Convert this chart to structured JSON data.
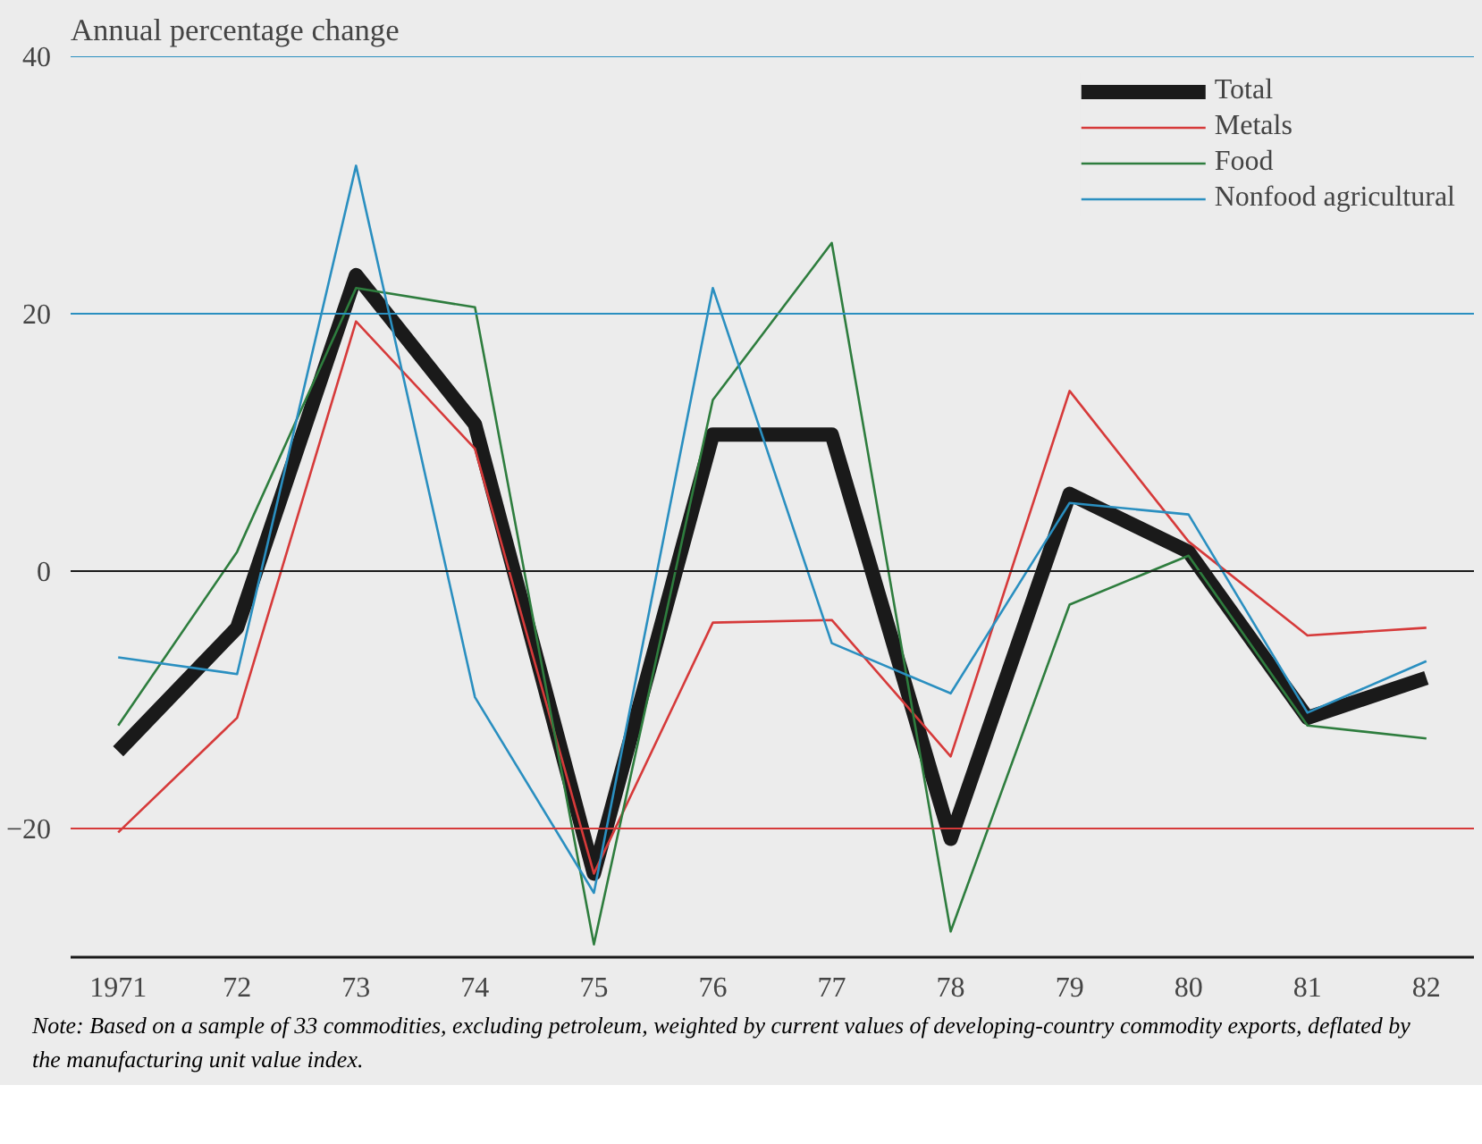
{
  "chart_data": {
    "type": "line",
    "ylabel": "Annual percentage change",
    "categories": [
      "1971",
      "72",
      "73",
      "74",
      "75",
      "76",
      "77",
      "78",
      "79",
      "80",
      "81",
      "82"
    ],
    "series": [
      {
        "name": "Total",
        "color": "#1a1a1a",
        "values": [
          -14,
          -4.4,
          23,
          11.4,
          -23.5,
          10.6,
          10.6,
          -20.8,
          6,
          1.5,
          -11.4,
          -8.3
        ]
      },
      {
        "name": "Metals",
        "color": "#d63a3a",
        "values": [
          -20.3,
          -11.4,
          19.4,
          9.5,
          -23.5,
          -4,
          -3.8,
          -14.4,
          14,
          2.3,
          -5,
          -4.4
        ]
      },
      {
        "name": "Food",
        "color": "#2e7d3e",
        "values": [
          -12,
          1.5,
          22,
          20.5,
          -29,
          13.3,
          25.5,
          -28,
          -2.6,
          1.2,
          -12,
          -13
        ]
      },
      {
        "name": "Nonfood agricultural",
        "color": "#2a8fc0",
        "values": [
          -6.7,
          -8,
          31.5,
          -9.8,
          -25,
          22,
          -5.6,
          -9.5,
          5.3,
          4.4,
          -11,
          -7
        ]
      }
    ],
    "ylim": [
      -30,
      40
    ],
    "yticks": [
      -20,
      0,
      20,
      40
    ],
    "ref_lines": [
      {
        "axis": "y",
        "value": 40,
        "color": "#2a8fc0"
      },
      {
        "axis": "y",
        "value": 20,
        "color": "#2a8fc0"
      },
      {
        "axis": "y",
        "value": 0,
        "color": "#1a1a1a"
      },
      {
        "axis": "y",
        "value": -20,
        "color": "#d63a3a"
      }
    ],
    "grid": false,
    "legend": "top right",
    "marker": "none",
    "line_style": "solid",
    "annotations": [
      "Note: Based on a sample of 33 commodities, excluding petroleum, weighted by current values of developing-country commodity exports, deflated by the manufacturing unit value index."
    ]
  }
}
